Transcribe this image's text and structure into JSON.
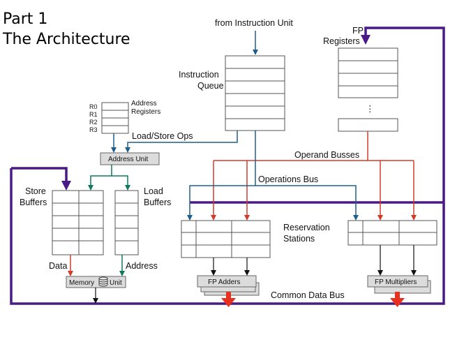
{
  "slide": {
    "title_line1": "Part 1",
    "title_line2": "The Architecture"
  },
  "labels": {
    "from_instruction_unit": "from Instruction Unit",
    "instruction_queue_1": "Instruction",
    "instruction_queue_2": "Queue",
    "fp_registers_1": "FP",
    "fp_registers_2": "Registers",
    "ellipsis": "⋮",
    "address_registers_1": "Address",
    "address_registers_2": "Registers",
    "reg_r0": "R0",
    "reg_r1": "R1",
    "reg_r2": "R2",
    "reg_r3": "R3",
    "load_store_ops": "Load/Store Ops",
    "address_unit": "Address Unit",
    "operand_busses": "Operand Busses",
    "operations_bus": "Operations Bus",
    "store_buffers_1": "Store",
    "store_buffers_2": "Buffers",
    "load_buffers_1": "Load",
    "load_buffers_2": "Buffers",
    "reservation_stations_1": "Reservation",
    "reservation_stations_2": "Stations",
    "data": "Data",
    "address": "Address",
    "memory_unit_1": "Memory",
    "memory_unit_2": "Unit",
    "fp_adders": "FP Adders",
    "fp_multipliers": "FP Multipliers",
    "common_data_bus": "Common Data Bus"
  },
  "colors": {
    "cdb_purple": "#4a1a86",
    "instruction_blue": "#1f5f8b",
    "memory_green": "#0d7a5e",
    "operand_red": "#d43a2a",
    "result_red": "#e8301f",
    "unit_fill": "#dcdcdc"
  }
}
